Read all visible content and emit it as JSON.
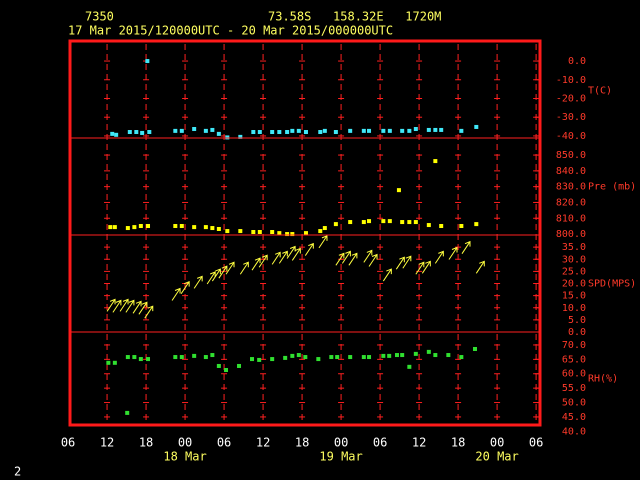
{
  "header": {
    "station": "7350",
    "location": "73.58S   158.32E   1720M",
    "period": "17 Mar 2015/120000UTC - 20 Mar 2015/000000UTC"
  },
  "page_number": "2",
  "chart_data": [
    {
      "type": "scatter",
      "ylabel": "T(C)",
      "color": "#40e8f8",
      "ylim": [
        -41.1,
        10.7
      ],
      "yticks": [
        {
          "value": 0,
          "label": "0.0"
        },
        {
          "value": -10,
          "label": "-10.0"
        },
        {
          "value": -20,
          "label": "-20.0"
        },
        {
          "value": -30,
          "label": "-30.0"
        },
        {
          "value": -40,
          "label": "-40.0"
        }
      ],
      "x": [
        12.8,
        13.4,
        15.5,
        16.5,
        17.4,
        18.2,
        18.5,
        22.5,
        23.5,
        25.4,
        27.2,
        28.2,
        29.2,
        30.5,
        32.5,
        34.5,
        35.5,
        37.4,
        38.5,
        39.7,
        40.5,
        41.5,
        42.6,
        44.8,
        45.5,
        47.2,
        49.4,
        51.5,
        52.3,
        54.5,
        55.5,
        57.4,
        58.5,
        59.5,
        61.5,
        62.5,
        63.4,
        66.5,
        68.8
      ],
      "values": [
        -38.9,
        -39.4,
        -37.9,
        -37.9,
        -38.4,
        0,
        -37.9,
        -37.3,
        -37.3,
        -36.3,
        -37.3,
        -36.8,
        -38.9,
        -40.8,
        -40.5,
        -37.9,
        -37.9,
        -37.9,
        -37.9,
        -37.9,
        -37.3,
        -37.3,
        -37.9,
        -37.9,
        -37.3,
        -37.9,
        -37.3,
        -37.3,
        -37.3,
        -37.3,
        -37.3,
        -37.3,
        -37.3,
        -36.3,
        -36.8,
        -36.8,
        -36.8,
        -37.3,
        -35.2
      ]
    },
    {
      "type": "scatter",
      "ylabel": "Pre (mb)",
      "color": "#ffff00",
      "ylim": [
        799.4,
        860.8
      ],
      "yticks": [
        {
          "value": 850,
          "label": "850.0"
        },
        {
          "value": 840,
          "label": "840.0"
        },
        {
          "value": 830,
          "label": "830.0"
        },
        {
          "value": 820,
          "label": "820.0"
        },
        {
          "value": 810,
          "label": "810.0"
        },
        {
          "value": 800,
          "label": "800.0"
        }
      ],
      "x": [
        12.5,
        13.2,
        15.2,
        16.2,
        17.2,
        18.3,
        22.5,
        23.5,
        25.4,
        27.2,
        28.2,
        29.2,
        30.5,
        32.5,
        34.5,
        35.5,
        37.4,
        38.5,
        39.7,
        40.5,
        42.6,
        44.8,
        45.5,
        47.2,
        49.4,
        51.5,
        52.3,
        54.5,
        55.5,
        56.9,
        57.4,
        58.5,
        59.5,
        61.5,
        62.5,
        63.4,
        66.5,
        68.8
      ],
      "values": [
        804.4,
        804.4,
        803.8,
        804.4,
        805.1,
        805.1,
        805.1,
        805.1,
        804.4,
        804.4,
        803.8,
        803.2,
        801.9,
        801.9,
        801.3,
        801.3,
        801.3,
        800.6,
        800,
        800,
        800.6,
        801.9,
        803.8,
        806.3,
        807.6,
        807.6,
        808.2,
        808.2,
        808.2,
        827.8,
        807.6,
        807.6,
        807.6,
        805.7,
        846.2,
        805.1,
        805.1,
        806.3
      ]
    },
    {
      "type": "barb",
      "ylabel": "SPD(MPS)",
      "color": "#ffff40",
      "ylim": [
        0,
        40
      ],
      "yticks": [
        {
          "value": 35,
          "label": "35.0"
        },
        {
          "value": 30,
          "label": "30.0"
        },
        {
          "value": 25,
          "label": "25.0"
        },
        {
          "value": 20,
          "label": "20.0"
        },
        {
          "value": 15,
          "label": "15.0"
        },
        {
          "value": 10,
          "label": "10.0"
        },
        {
          "value": 5,
          "label": "5.0"
        },
        {
          "value": 0,
          "label": "0.0"
        }
      ],
      "x": [
        12.0,
        12.9,
        14.0,
        14.9,
        16.0,
        16.9,
        17.8,
        22.0,
        23.4,
        25.4,
        27.4,
        28.2,
        29.2,
        30.3,
        32.5,
        34.3,
        35.4,
        37.4,
        38.5,
        39.7,
        40.5,
        42.5,
        44.6,
        47.2,
        48.2,
        49.2,
        51.5,
        52.3,
        54.5,
        56.5,
        57.5,
        59.5,
        60.5,
        62.5,
        64.6,
        66.6,
        68.8
      ],
      "values": [
        8.5,
        8.1,
        8.5,
        8.1,
        7.7,
        7.3,
        5.7,
        13,
        15.8,
        18,
        19.8,
        21,
        22.2,
        23.8,
        23.8,
        25.5,
        26.7,
        27.9,
        28.3,
        30.3,
        29.5,
        31.5,
        34.7,
        27.5,
        28.3,
        27.5,
        28.7,
        27,
        21,
        25.9,
        26.3,
        23.8,
        24.2,
        28.3,
        29.9,
        32.3,
        24.2
      ]
    },
    {
      "type": "scatter",
      "ylabel": "RH(%)",
      "color": "#30e030",
      "ylim": [
        42.2,
        74.5
      ],
      "yticks": [
        {
          "value": 70,
          "label": "70.0"
        },
        {
          "value": 65,
          "label": "65.0"
        },
        {
          "value": 60,
          "label": "60.0"
        },
        {
          "value": 55,
          "label": "55.0"
        },
        {
          "value": 50,
          "label": "50.0"
        },
        {
          "value": 45,
          "label": "45.0"
        },
        {
          "value": 40,
          "label": "40.0"
        }
      ],
      "x": [
        12.2,
        13.2,
        15.1,
        15.2,
        16.2,
        17.2,
        18.3,
        22.5,
        23.5,
        25.4,
        27.2,
        28.2,
        29.2,
        30.3,
        32.3,
        34.3,
        35.4,
        37.4,
        39.4,
        40.5,
        41.5,
        42.5,
        44.5,
        46.5,
        47.4,
        49.4,
        51.5,
        52.3,
        54.5,
        55.4,
        56.6,
        57.4,
        58.5,
        59.5,
        61.5,
        62.5,
        64.5,
        66.5,
        68.6
      ],
      "values": [
        63.8,
        63.8,
        46.4,
        65.8,
        65.8,
        65.1,
        65.1,
        65.8,
        65.8,
        66.2,
        65.8,
        66.5,
        62.7,
        61.3,
        62.7,
        65.1,
        64.8,
        65.1,
        65.5,
        66.2,
        66.5,
        65.8,
        65.1,
        65.8,
        65.8,
        65.8,
        65.8,
        65.8,
        66.2,
        66.2,
        66.5,
        66.5,
        62.4,
        66.9,
        67.6,
        66.5,
        66.5,
        65.8,
        68.6
      ],
      "xlim": [
        6.3,
        78.6
      ],
      "xticks": [
        {
          "value": 6,
          "label": "06"
        },
        {
          "value": 12,
          "label": "12"
        },
        {
          "value": 18,
          "label": "18"
        },
        {
          "value": 24,
          "label": "00"
        },
        {
          "value": 30,
          "label": "06"
        },
        {
          "value": 36,
          "label": "12"
        },
        {
          "value": 42,
          "label": "18"
        },
        {
          "value": 48,
          "label": "00"
        },
        {
          "value": 54,
          "label": "06"
        },
        {
          "value": 60,
          "label": "12"
        },
        {
          "value": 66,
          "label": "18"
        },
        {
          "value": 72,
          "label": "00"
        },
        {
          "value": 78,
          "label": "06"
        }
      ],
      "date_labels": [
        {
          "value": 24,
          "label": "18 Mar"
        },
        {
          "value": 48,
          "label": "19 Mar"
        },
        {
          "value": 72,
          "label": "20 Mar"
        }
      ]
    }
  ]
}
